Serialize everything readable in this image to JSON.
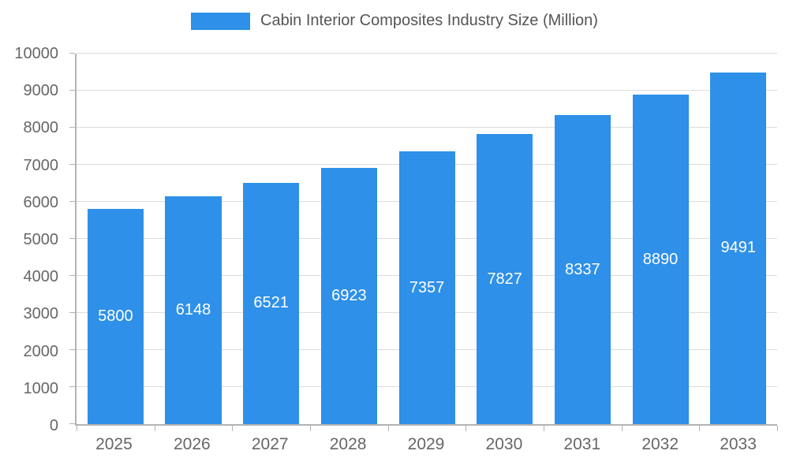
{
  "chart_data": {
    "type": "bar",
    "title": "Cabin Interior Composites Industry Size (Million)",
    "categories": [
      "2025",
      "2026",
      "2027",
      "2028",
      "2029",
      "2030",
      "2031",
      "2032",
      "2033"
    ],
    "values": [
      5800,
      6148,
      6521,
      6923,
      7357,
      7827,
      8337,
      8890,
      9491
    ],
    "xlabel": "",
    "ylabel": "",
    "ylim": [
      0,
      10000
    ],
    "ytick_step": 1000,
    "grid": true,
    "legend_position": "top",
    "colors": {
      "bar": "#2E90E8",
      "value_label": "#FFFFFF",
      "axis_text": "#666666",
      "title_text": "#555555",
      "gridline": "#DCDCDC",
      "axis_line": "#B3B3B3"
    }
  }
}
